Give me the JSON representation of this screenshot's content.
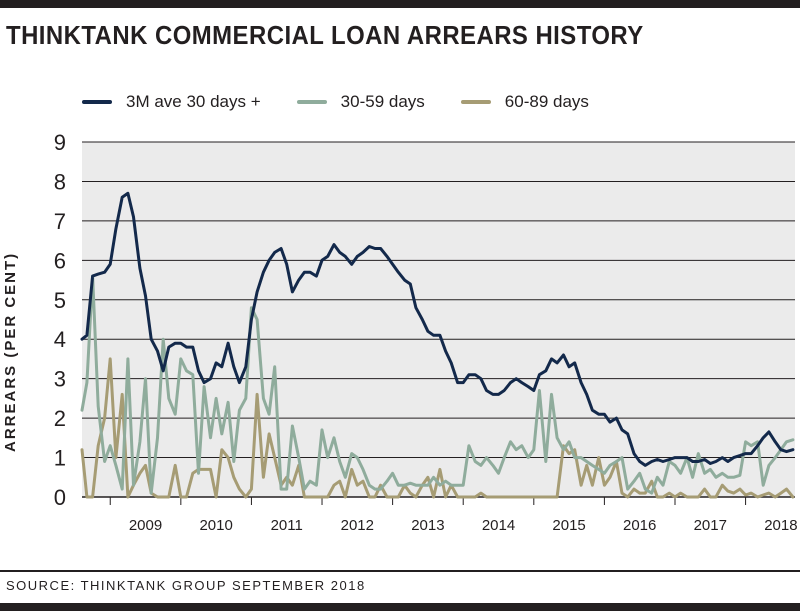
{
  "title": "THINKTANK COMMERCIAL LOAN ARREARS HISTORY",
  "source": "SOURCE: THINKTANK GROUP SEPTEMBER 2018",
  "colors": {
    "series_3m": "#13294b",
    "series_30_59": "#8fac9c",
    "series_60_89": "#a69c74",
    "plot_bg": "#ebebeb",
    "text": "#231f20"
  },
  "chart_data": {
    "type": "line",
    "title": "THINKTANK COMMERCIAL LOAN ARREARS HISTORY",
    "xlabel": "",
    "ylabel": "ARREARS (PER CENT)",
    "ylim": [
      0,
      9
    ],
    "xlim": [
      2008.6,
      2018.7
    ],
    "y_ticks": [
      0,
      1,
      2,
      3,
      4,
      5,
      6,
      7,
      8,
      9
    ],
    "x_ticks": [
      "2009",
      "2010",
      "2011",
      "2012",
      "2013",
      "2014",
      "2015",
      "2016",
      "2017",
      "2018"
    ],
    "grid": true,
    "legend_position": "top",
    "series": [
      {
        "name": "3M ave 30 days +",
        "x": [
          2008.6,
          2008.67,
          2008.75,
          2008.83,
          2008.92,
          2009.0,
          2009.08,
          2009.17,
          2009.25,
          2009.33,
          2009.42,
          2009.5,
          2009.58,
          2009.67,
          2009.75,
          2009.83,
          2009.92,
          2010.0,
          2010.08,
          2010.17,
          2010.25,
          2010.33,
          2010.42,
          2010.5,
          2010.58,
          2010.67,
          2010.75,
          2010.83,
          2010.92,
          2011.0,
          2011.08,
          2011.17,
          2011.25,
          2011.33,
          2011.42,
          2011.5,
          2011.58,
          2011.67,
          2011.75,
          2011.83,
          2011.92,
          2012.0,
          2012.08,
          2012.17,
          2012.25,
          2012.33,
          2012.42,
          2012.5,
          2012.58,
          2012.67,
          2012.75,
          2012.83,
          2012.92,
          2013.0,
          2013.08,
          2013.17,
          2013.25,
          2013.33,
          2013.42,
          2013.5,
          2013.58,
          2013.67,
          2013.75,
          2013.83,
          2013.92,
          2014.0,
          2014.08,
          2014.17,
          2014.25,
          2014.33,
          2014.42,
          2014.5,
          2014.58,
          2014.67,
          2014.75,
          2014.83,
          2014.92,
          2015.0,
          2015.08,
          2015.17,
          2015.25,
          2015.33,
          2015.42,
          2015.5,
          2015.58,
          2015.67,
          2015.75,
          2015.83,
          2015.92,
          2016.0,
          2016.08,
          2016.17,
          2016.25,
          2016.33,
          2016.42,
          2016.5,
          2016.58,
          2016.67,
          2016.75,
          2016.83,
          2016.92,
          2017.0,
          2017.08,
          2017.17,
          2017.25,
          2017.33,
          2017.42,
          2017.5,
          2017.58,
          2017.67,
          2017.75,
          2017.83,
          2017.92,
          2018.0,
          2018.08,
          2018.17,
          2018.25,
          2018.33,
          2018.42,
          2018.5,
          2018.58,
          2018.67
        ],
        "values": [
          4.0,
          4.1,
          5.6,
          5.65,
          5.7,
          5.9,
          6.8,
          7.6,
          7.7,
          7.1,
          5.8,
          5.1,
          4.0,
          3.7,
          3.2,
          3.8,
          3.9,
          3.9,
          3.8,
          3.8,
          3.2,
          2.9,
          3.0,
          3.4,
          3.3,
          3.9,
          3.3,
          2.9,
          3.3,
          4.5,
          5.2,
          5.7,
          6.0,
          6.2,
          6.3,
          5.9,
          5.2,
          5.5,
          5.7,
          5.7,
          5.6,
          6.0,
          6.1,
          6.4,
          6.2,
          6.1,
          5.9,
          6.1,
          6.2,
          6.35,
          6.3,
          6.3,
          6.1,
          5.9,
          5.7,
          5.5,
          5.4,
          4.8,
          4.5,
          4.2,
          4.1,
          4.1,
          3.7,
          3.4,
          2.9,
          2.9,
          3.1,
          3.1,
          3.0,
          2.7,
          2.6,
          2.6,
          2.7,
          2.9,
          3.0,
          2.9,
          2.8,
          2.7,
          3.1,
          3.2,
          3.5,
          3.4,
          3.6,
          3.3,
          3.4,
          2.9,
          2.6,
          2.2,
          2.1,
          2.1,
          1.9,
          2.0,
          1.7,
          1.6,
          1.1,
          0.9,
          0.8,
          0.9,
          0.95,
          0.9,
          0.95,
          1.0,
          1.0,
          1.0,
          0.9,
          0.9,
          0.95,
          0.85,
          0.9,
          1.0,
          0.9,
          1.0,
          1.05,
          1.1,
          1.1,
          1.3,
          1.5,
          1.65,
          1.4,
          1.2,
          1.15,
          1.2
        ]
      },
      {
        "name": "30-59 days",
        "x": [
          2008.6,
          2008.67,
          2008.75,
          2008.83,
          2008.92,
          2009.0,
          2009.08,
          2009.17,
          2009.25,
          2009.33,
          2009.42,
          2009.5,
          2009.58,
          2009.67,
          2009.75,
          2009.83,
          2009.92,
          2010.0,
          2010.08,
          2010.17,
          2010.25,
          2010.33,
          2010.42,
          2010.5,
          2010.58,
          2010.67,
          2010.75,
          2010.83,
          2010.92,
          2011.0,
          2011.08,
          2011.17,
          2011.25,
          2011.33,
          2011.42,
          2011.5,
          2011.58,
          2011.67,
          2011.75,
          2011.83,
          2011.92,
          2012.0,
          2012.08,
          2012.17,
          2012.25,
          2012.33,
          2012.42,
          2012.5,
          2012.58,
          2012.67,
          2012.75,
          2012.83,
          2012.92,
          2013.0,
          2013.08,
          2013.17,
          2013.25,
          2013.33,
          2013.42,
          2013.5,
          2013.58,
          2013.67,
          2013.75,
          2013.83,
          2013.92,
          2014.0,
          2014.08,
          2014.17,
          2014.25,
          2014.33,
          2014.42,
          2014.5,
          2014.58,
          2014.67,
          2014.75,
          2014.83,
          2014.92,
          2015.0,
          2015.08,
          2015.17,
          2015.25,
          2015.33,
          2015.42,
          2015.5,
          2015.58,
          2015.67,
          2015.75,
          2015.83,
          2015.92,
          2016.0,
          2016.08,
          2016.17,
          2016.25,
          2016.33,
          2016.42,
          2016.5,
          2016.58,
          2016.67,
          2016.75,
          2016.83,
          2016.92,
          2017.0,
          2017.08,
          2017.17,
          2017.25,
          2017.33,
          2017.42,
          2017.5,
          2017.58,
          2017.67,
          2017.75,
          2017.83,
          2017.92,
          2018.0,
          2018.08,
          2018.17,
          2018.25,
          2018.33,
          2018.42,
          2018.5,
          2018.58,
          2018.67
        ],
        "values": [
          2.2,
          2.9,
          5.6,
          2.3,
          0.9,
          1.3,
          0.8,
          0.2,
          3.5,
          0.3,
          1.4,
          3.0,
          0.1,
          1.5,
          4.0,
          2.5,
          2.1,
          3.5,
          3.2,
          3.1,
          0.6,
          2.8,
          1.5,
          2.5,
          1.6,
          2.4,
          0.9,
          2.2,
          2.5,
          4.8,
          4.5,
          2.5,
          2.1,
          3.3,
          0.2,
          0.2,
          1.8,
          1.0,
          0.2,
          0.4,
          0.3,
          1.7,
          1.0,
          1.5,
          0.9,
          0.5,
          1.1,
          1.0,
          0.7,
          0.3,
          0.2,
          0.2,
          0.4,
          0.6,
          0.3,
          0.3,
          0.35,
          0.3,
          0.3,
          0.3,
          0.5,
          0.3,
          0.4,
          0.3,
          0.3,
          0.3,
          1.3,
          0.9,
          0.8,
          1.0,
          0.8,
          0.6,
          1.0,
          1.4,
          1.2,
          1.3,
          1.0,
          1.2,
          2.7,
          0.9,
          2.6,
          1.5,
          1.2,
          1.4,
          1.0,
          1.0,
          0.9,
          0.8,
          0.7,
          0.6,
          0.8,
          0.9,
          1.0,
          0.2,
          0.4,
          0.6,
          0.2,
          0.1,
          0.5,
          0.3,
          0.9,
          0.8,
          0.6,
          1.0,
          0.5,
          1.1,
          0.6,
          0.7,
          0.5,
          0.6,
          0.5,
          0.5,
          0.55,
          1.4,
          1.3,
          1.4,
          0.3,
          0.8,
          1.0,
          1.2,
          1.4,
          1.45
        ]
      },
      {
        "name": "60-89 days",
        "x": [
          2008.6,
          2008.67,
          2008.75,
          2008.83,
          2008.92,
          2009.0,
          2009.08,
          2009.17,
          2009.25,
          2009.33,
          2009.42,
          2009.5,
          2009.58,
          2009.67,
          2009.75,
          2009.83,
          2009.92,
          2010.0,
          2010.08,
          2010.17,
          2010.25,
          2010.33,
          2010.42,
          2010.5,
          2010.58,
          2010.67,
          2010.75,
          2010.83,
          2010.92,
          2011.0,
          2011.08,
          2011.17,
          2011.25,
          2011.33,
          2011.42,
          2011.5,
          2011.58,
          2011.67,
          2011.75,
          2011.83,
          2011.92,
          2012.0,
          2012.08,
          2012.17,
          2012.25,
          2012.33,
          2012.42,
          2012.5,
          2012.58,
          2012.67,
          2012.75,
          2012.83,
          2012.92,
          2013.0,
          2013.08,
          2013.17,
          2013.25,
          2013.33,
          2013.42,
          2013.5,
          2013.58,
          2013.67,
          2013.75,
          2013.83,
          2013.92,
          2014.0,
          2014.08,
          2014.17,
          2014.25,
          2014.33,
          2014.42,
          2014.5,
          2014.58,
          2014.67,
          2014.75,
          2014.83,
          2014.92,
          2015.0,
          2015.08,
          2015.17,
          2015.25,
          2015.33,
          2015.42,
          2015.5,
          2015.58,
          2015.67,
          2015.75,
          2015.83,
          2015.92,
          2016.0,
          2016.08,
          2016.17,
          2016.25,
          2016.33,
          2016.42,
          2016.5,
          2016.58,
          2016.67,
          2016.75,
          2016.83,
          2016.92,
          2017.0,
          2017.08,
          2017.17,
          2017.25,
          2017.33,
          2017.42,
          2017.5,
          2017.58,
          2017.67,
          2017.75,
          2017.83,
          2017.92,
          2018.0,
          2018.08,
          2018.17,
          2018.25,
          2018.33,
          2018.42,
          2018.5,
          2018.58,
          2018.67
        ],
        "values": [
          1.2,
          0.0,
          0.0,
          1.3,
          2.0,
          3.5,
          1.0,
          2.6,
          0.0,
          0.3,
          0.6,
          0.8,
          0.1,
          0.0,
          0.0,
          0.0,
          0.8,
          0.0,
          0.0,
          0.6,
          0.7,
          0.7,
          0.7,
          0.0,
          1.2,
          1.0,
          0.5,
          0.2,
          0.0,
          0.2,
          2.6,
          0.5,
          1.6,
          1.0,
          0.3,
          0.5,
          0.3,
          0.8,
          0.0,
          0.0,
          0.0,
          0.0,
          0.0,
          0.3,
          0.4,
          0.0,
          0.7,
          0.3,
          0.4,
          0.0,
          0.0,
          0.3,
          0.0,
          0.0,
          0.0,
          0.3,
          0.1,
          0.0,
          0.3,
          0.5,
          0.0,
          0.7,
          0.0,
          0.3,
          0.0,
          0.0,
          0.0,
          0.0,
          0.1,
          0.0,
          0.0,
          0.0,
          0.0,
          0.0,
          0.0,
          0.0,
          0.0,
          0.0,
          0.0,
          0.0,
          0.0,
          0.0,
          1.3,
          1.1,
          1.2,
          0.3,
          0.8,
          0.3,
          1.0,
          0.3,
          0.5,
          0.9,
          0.1,
          0.0,
          0.2,
          0.1,
          0.1,
          0.4,
          0.0,
          0.0,
          0.1,
          0.0,
          0.1,
          0.0,
          0.0,
          0.0,
          0.2,
          0.0,
          0.0,
          0.3,
          0.15,
          0.1,
          0.2,
          0.05,
          0.1,
          0.0,
          0.05,
          0.1,
          0.0,
          0.1,
          0.2,
          0.0
        ]
      }
    ]
  }
}
